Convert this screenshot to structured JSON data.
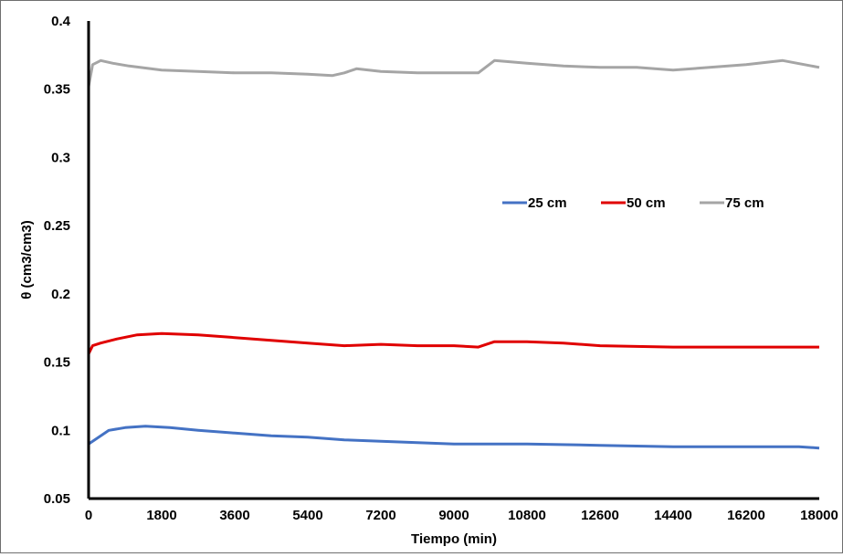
{
  "chart_data": {
    "type": "line",
    "title": "",
    "xlabel": "Tiempo (min)",
    "ylabel": "θ (cm3/cm3)",
    "xlim": [
      0,
      18000
    ],
    "ylim": [
      0.05,
      0.4
    ],
    "x_ticks": [
      "0",
      "1800",
      "3600",
      "5400",
      "7200",
      "9000",
      "10800",
      "12600",
      "14400",
      "16200",
      "18000"
    ],
    "y_ticks": [
      "0.05",
      "0.1",
      "0.15",
      "0.2",
      "0.25",
      "0.3",
      "0.35",
      "0.4"
    ],
    "grid": false,
    "legend_position": "center-right",
    "series": [
      {
        "name": "25 cm",
        "color": "#4472C4",
        "x": [
          0,
          200,
          500,
          900,
          1400,
          2000,
          2700,
          3600,
          4500,
          5400,
          6300,
          7200,
          8100,
          9000,
          10800,
          12600,
          14400,
          16200,
          17500,
          18000
        ],
        "y": [
          0.09,
          0.094,
          0.1,
          0.102,
          0.103,
          0.102,
          0.1,
          0.098,
          0.096,
          0.095,
          0.093,
          0.092,
          0.091,
          0.09,
          0.09,
          0.089,
          0.088,
          0.088,
          0.088,
          0.087
        ]
      },
      {
        "name": "50 cm",
        "color": "#E00000",
        "x": [
          0,
          100,
          300,
          700,
          1200,
          1800,
          2700,
          3600,
          4500,
          5400,
          6300,
          7200,
          8100,
          9000,
          9600,
          10000,
          10800,
          11700,
          12600,
          14400,
          16200,
          18000
        ],
        "y": [
          0.156,
          0.162,
          0.164,
          0.167,
          0.17,
          0.171,
          0.17,
          0.168,
          0.166,
          0.164,
          0.162,
          0.163,
          0.162,
          0.162,
          0.161,
          0.165,
          0.165,
          0.164,
          0.162,
          0.161,
          0.161,
          0.161
        ]
      },
      {
        "name": "75 cm",
        "color": "#A5A5A5",
        "x": [
          0,
          100,
          300,
          600,
          1000,
          1800,
          2700,
          3600,
          4500,
          5400,
          6000,
          6300,
          6600,
          7200,
          8100,
          9000,
          9600,
          10000,
          10800,
          11700,
          12600,
          13500,
          14400,
          15300,
          16200,
          17100,
          18000
        ],
        "y": [
          0.352,
          0.368,
          0.371,
          0.369,
          0.367,
          0.364,
          0.363,
          0.362,
          0.362,
          0.361,
          0.36,
          0.362,
          0.365,
          0.363,
          0.362,
          0.362,
          0.362,
          0.371,
          0.369,
          0.367,
          0.366,
          0.366,
          0.364,
          0.366,
          0.368,
          0.371,
          0.366
        ]
      }
    ]
  }
}
